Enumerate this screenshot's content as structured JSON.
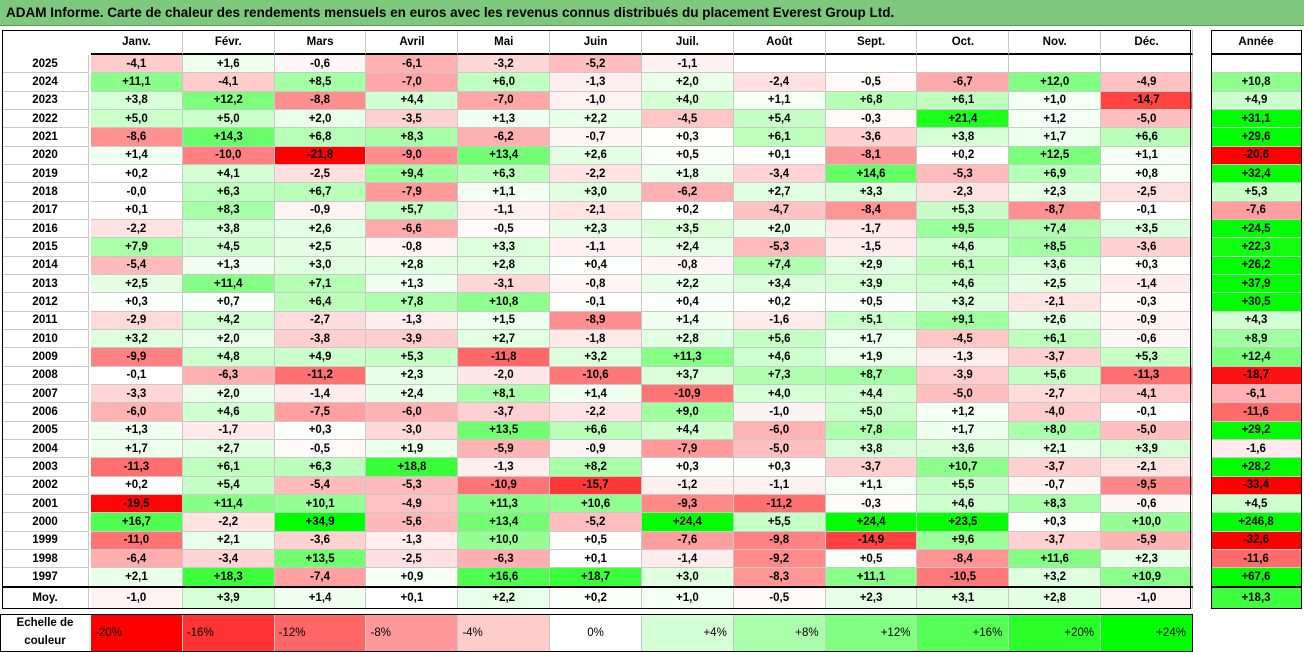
{
  "title": "ADAM Informe. Carte de chaleur des rendements mensuels en euros avec les revenus connus distribués du placement Everest Group Ltd.",
  "chart_data": {
    "type": "heatmap",
    "columns": [
      "Janv.",
      "Févr.",
      "Mars",
      "Avril",
      "Mai",
      "Juin",
      "Juil.",
      "Août",
      "Sept.",
      "Oct.",
      "Nov.",
      "Déc."
    ],
    "annual_column": "Année",
    "rows": [
      {
        "year": "2025",
        "values": [
          "-4,1",
          "+1,6",
          "-0,6",
          "-6,1",
          "-3,2",
          "-5,2",
          "-1,1",
          "",
          "",
          "",
          "",
          ""
        ],
        "annual": ""
      },
      {
        "year": "2024",
        "values": [
          "+11,1",
          "-4,1",
          "+8,5",
          "-7,0",
          "+6,0",
          "-1,3",
          "+2,0",
          "-2,4",
          "-0,5",
          "-6,7",
          "+12,0",
          "-4,9"
        ],
        "annual": "+10,8"
      },
      {
        "year": "2023",
        "values": [
          "+3,8",
          "+12,2",
          "-8,8",
          "+4,4",
          "-7,0",
          "-1,0",
          "+4,0",
          "+1,1",
          "+6,8",
          "+6,1",
          "+1,0",
          "-14,7"
        ],
        "annual": "+4,9"
      },
      {
        "year": "2022",
        "values": [
          "+5,0",
          "+5,0",
          "+2,0",
          "-3,5",
          "+1,3",
          "+2,2",
          "-4,5",
          "+5,4",
          "-0,3",
          "+21,4",
          "+1,2",
          "-5,0"
        ],
        "annual": "+31,1"
      },
      {
        "year": "2021",
        "values": [
          "-8,6",
          "+14,3",
          "+6,8",
          "+8,3",
          "-6,2",
          "-0,7",
          "+0,3",
          "+6,1",
          "-3,6",
          "+3,8",
          "+1,7",
          "+6,6"
        ],
        "annual": "+29,6"
      },
      {
        "year": "2020",
        "values": [
          "+1,4",
          "-10,0",
          "-21,8",
          "-9,0",
          "+13,4",
          "+2,6",
          "+0,5",
          "+0,1",
          "-8,1",
          "+0,2",
          "+12,5",
          "+1,1"
        ],
        "annual": "-20,6"
      },
      {
        "year": "2019",
        "values": [
          "+0,2",
          "+4,1",
          "-2,5",
          "+9,4",
          "+6,3",
          "-2,2",
          "+1,8",
          "-3,4",
          "+14,6",
          "-5,3",
          "+6,9",
          "+0,8"
        ],
        "annual": "+32,4"
      },
      {
        "year": "2018",
        "values": [
          "-0,0",
          "+6,3",
          "+6,7",
          "-7,9",
          "+1,1",
          "+3,0",
          "-6,2",
          "+2,7",
          "+3,3",
          "-2,3",
          "+2,3",
          "-2,5"
        ],
        "annual": "+5,3"
      },
      {
        "year": "2017",
        "values": [
          "+0,1",
          "+8,3",
          "-0,9",
          "+5,7",
          "-1,1",
          "-2,1",
          "+0,2",
          "-4,7",
          "-8,4",
          "+5,3",
          "-8,7",
          "-0,1"
        ],
        "annual": "-7,6"
      },
      {
        "year": "2016",
        "values": [
          "-2,2",
          "+3,8",
          "+2,6",
          "-6,6",
          "-0,5",
          "+2,3",
          "+3,5",
          "+2,0",
          "-1,7",
          "+9,5",
          "+7,4",
          "+3,5"
        ],
        "annual": "+24,5"
      },
      {
        "year": "2015",
        "values": [
          "+7,9",
          "+4,5",
          "+2,5",
          "-0,8",
          "+3,3",
          "-1,1",
          "+2,4",
          "-5,3",
          "-1,5",
          "+4,6",
          "+8,5",
          "-3,6"
        ],
        "annual": "+22,3"
      },
      {
        "year": "2014",
        "values": [
          "-5,4",
          "+1,3",
          "+3,0",
          "+2,8",
          "+2,8",
          "+0,4",
          "-0,8",
          "+7,4",
          "+2,9",
          "+6,1",
          "+3,6",
          "+0,3"
        ],
        "annual": "+26,2"
      },
      {
        "year": "2013",
        "values": [
          "+2,5",
          "+11,4",
          "+7,1",
          "+1,3",
          "-3,1",
          "-0,8",
          "+2,2",
          "+3,4",
          "+3,9",
          "+4,6",
          "+2,5",
          "-1,4"
        ],
        "annual": "+37,9"
      },
      {
        "year": "2012",
        "values": [
          "+0,3",
          "+0,7",
          "+6,4",
          "+7,8",
          "+10,8",
          "-0,1",
          "+0,4",
          "+0,2",
          "+0,5",
          "+3,2",
          "-2,1",
          "-0,3"
        ],
        "annual": "+30,5"
      },
      {
        "year": "2011",
        "values": [
          "-2,9",
          "+4,2",
          "-2,7",
          "-1,3",
          "+1,5",
          "-8,9",
          "+1,4",
          "-1,6",
          "+5,1",
          "+9,1",
          "+2,6",
          "-0,9"
        ],
        "annual": "+4,3"
      },
      {
        "year": "2010",
        "values": [
          "+3,2",
          "+2,0",
          "-3,8",
          "-3,9",
          "+2,7",
          "-1,8",
          "+2,8",
          "+5,6",
          "+1,7",
          "-4,5",
          "+6,1",
          "-0,6"
        ],
        "annual": "+8,9"
      },
      {
        "year": "2009",
        "values": [
          "-9,9",
          "+4,8",
          "+4,9",
          "+5,3",
          "-11,8",
          "+3,2",
          "+11,3",
          "+4,6",
          "+1,9",
          "-1,3",
          "-3,7",
          "+5,3"
        ],
        "annual": "+12,4"
      },
      {
        "year": "2008",
        "values": [
          "-0,1",
          "-6,3",
          "-11,2",
          "+2,3",
          "-2,0",
          "-10,6",
          "+3,7",
          "+7,3",
          "+8,7",
          "-3,9",
          "+5,6",
          "-11,3"
        ],
        "annual": "-18,7"
      },
      {
        "year": "2007",
        "values": [
          "-3,3",
          "+2,0",
          "-1,4",
          "+2,4",
          "+8,1",
          "+1,4",
          "-10,9",
          "+4,0",
          "+4,4",
          "-5,0",
          "-2,7",
          "-4,1"
        ],
        "annual": "-6,1"
      },
      {
        "year": "2006",
        "values": [
          "-6,0",
          "+4,6",
          "-7,5",
          "-6,0",
          "-3,7",
          "-2,2",
          "+9,0",
          "-1,0",
          "+5,0",
          "+1,2",
          "-4,0",
          "-0,1"
        ],
        "annual": "-11,6"
      },
      {
        "year": "2005",
        "values": [
          "+1,3",
          "-1,7",
          "+0,3",
          "-3,0",
          "+13,5",
          "+6,6",
          "+4,4",
          "-6,0",
          "+7,8",
          "+1,7",
          "+8,0",
          "-5,0"
        ],
        "annual": "+29,2"
      },
      {
        "year": "2004",
        "values": [
          "+1,7",
          "+2,7",
          "-0,5",
          "+1,9",
          "-5,9",
          "-0,9",
          "-7,9",
          "-5,0",
          "+3,8",
          "+3,6",
          "+2,1",
          "+3,9"
        ],
        "annual": "-1,6"
      },
      {
        "year": "2003",
        "values": [
          "-11,3",
          "+6,1",
          "+6,3",
          "+18,8",
          "-1,3",
          "+8,2",
          "+0,3",
          "+0,3",
          "-3,7",
          "+10,7",
          "-3,7",
          "-2,1"
        ],
        "annual": "+28,2"
      },
      {
        "year": "2002",
        "values": [
          "+0,2",
          "+5,4",
          "-5,4",
          "-5,3",
          "-10,9",
          "-15,7",
          "-1,2",
          "-1,1",
          "+1,1",
          "+5,5",
          "-0,7",
          "-9,5"
        ],
        "annual": "-33,4"
      },
      {
        "year": "2001",
        "values": [
          "-19,5",
          "+11,4",
          "+10,1",
          "-4,9",
          "+11,3",
          "+10,6",
          "-9,3",
          "-11,2",
          "-0,3",
          "+4,6",
          "+8,3",
          "-0,6"
        ],
        "annual": "+4,5"
      },
      {
        "year": "2000",
        "values": [
          "+16,7",
          "-2,2",
          "+34,9",
          "-5,6",
          "+13,4",
          "-5,2",
          "+24,4",
          "+5,5",
          "+24,4",
          "+23,5",
          "+0,3",
          "+10,0"
        ],
        "annual": "+246,8"
      },
      {
        "year": "1999",
        "values": [
          "-11,0",
          "+2,1",
          "-3,6",
          "-1,3",
          "+10,0",
          "+0,5",
          "-7,6",
          "-9,8",
          "-14,9",
          "+9,6",
          "-3,7",
          "-5,9"
        ],
        "annual": "-32,6"
      },
      {
        "year": "1998",
        "values": [
          "-6,4",
          "-3,4",
          "+13,5",
          "-2,5",
          "-6,3",
          "+0,1",
          "-1,4",
          "-9,2",
          "+0,5",
          "-8,4",
          "+11,6",
          "+2,3"
        ],
        "annual": "-11,6"
      },
      {
        "year": "1997",
        "values": [
          "+2,1",
          "+18,3",
          "-7,4",
          "+0,9",
          "+16,6",
          "+18,7",
          "+3,0",
          "-8,3",
          "+11,1",
          "-10,5",
          "+3,2",
          "+10,9"
        ],
        "annual": "+67,6"
      }
    ],
    "average": {
      "label": "Moy.",
      "values": [
        "-1,0",
        "+3,9",
        "+1,4",
        "+0,1",
        "+2,2",
        "+0,2",
        "+1,0",
        "-0,5",
        "+2,3",
        "+3,1",
        "+2,8",
        "-1,0"
      ],
      "annual": "+18,3"
    },
    "scale": {
      "label_line1": "Echelle de",
      "label_line2": "couleur",
      "steps": [
        "-20%",
        "-16%",
        "-12%",
        "-8%",
        "-4%",
        "0%",
        "+4%",
        "+8%",
        "+12%",
        "+16%",
        "+20%",
        "+24%"
      ],
      "step_values": [
        -20,
        -16,
        -12,
        -8,
        -4,
        0,
        4,
        8,
        12,
        16,
        20,
        24
      ]
    },
    "colors": {
      "negative_max": "#ff0000",
      "neutral": "#ffffff",
      "positive_max": "#00ff00",
      "title_bg": "#7ec87e"
    }
  }
}
